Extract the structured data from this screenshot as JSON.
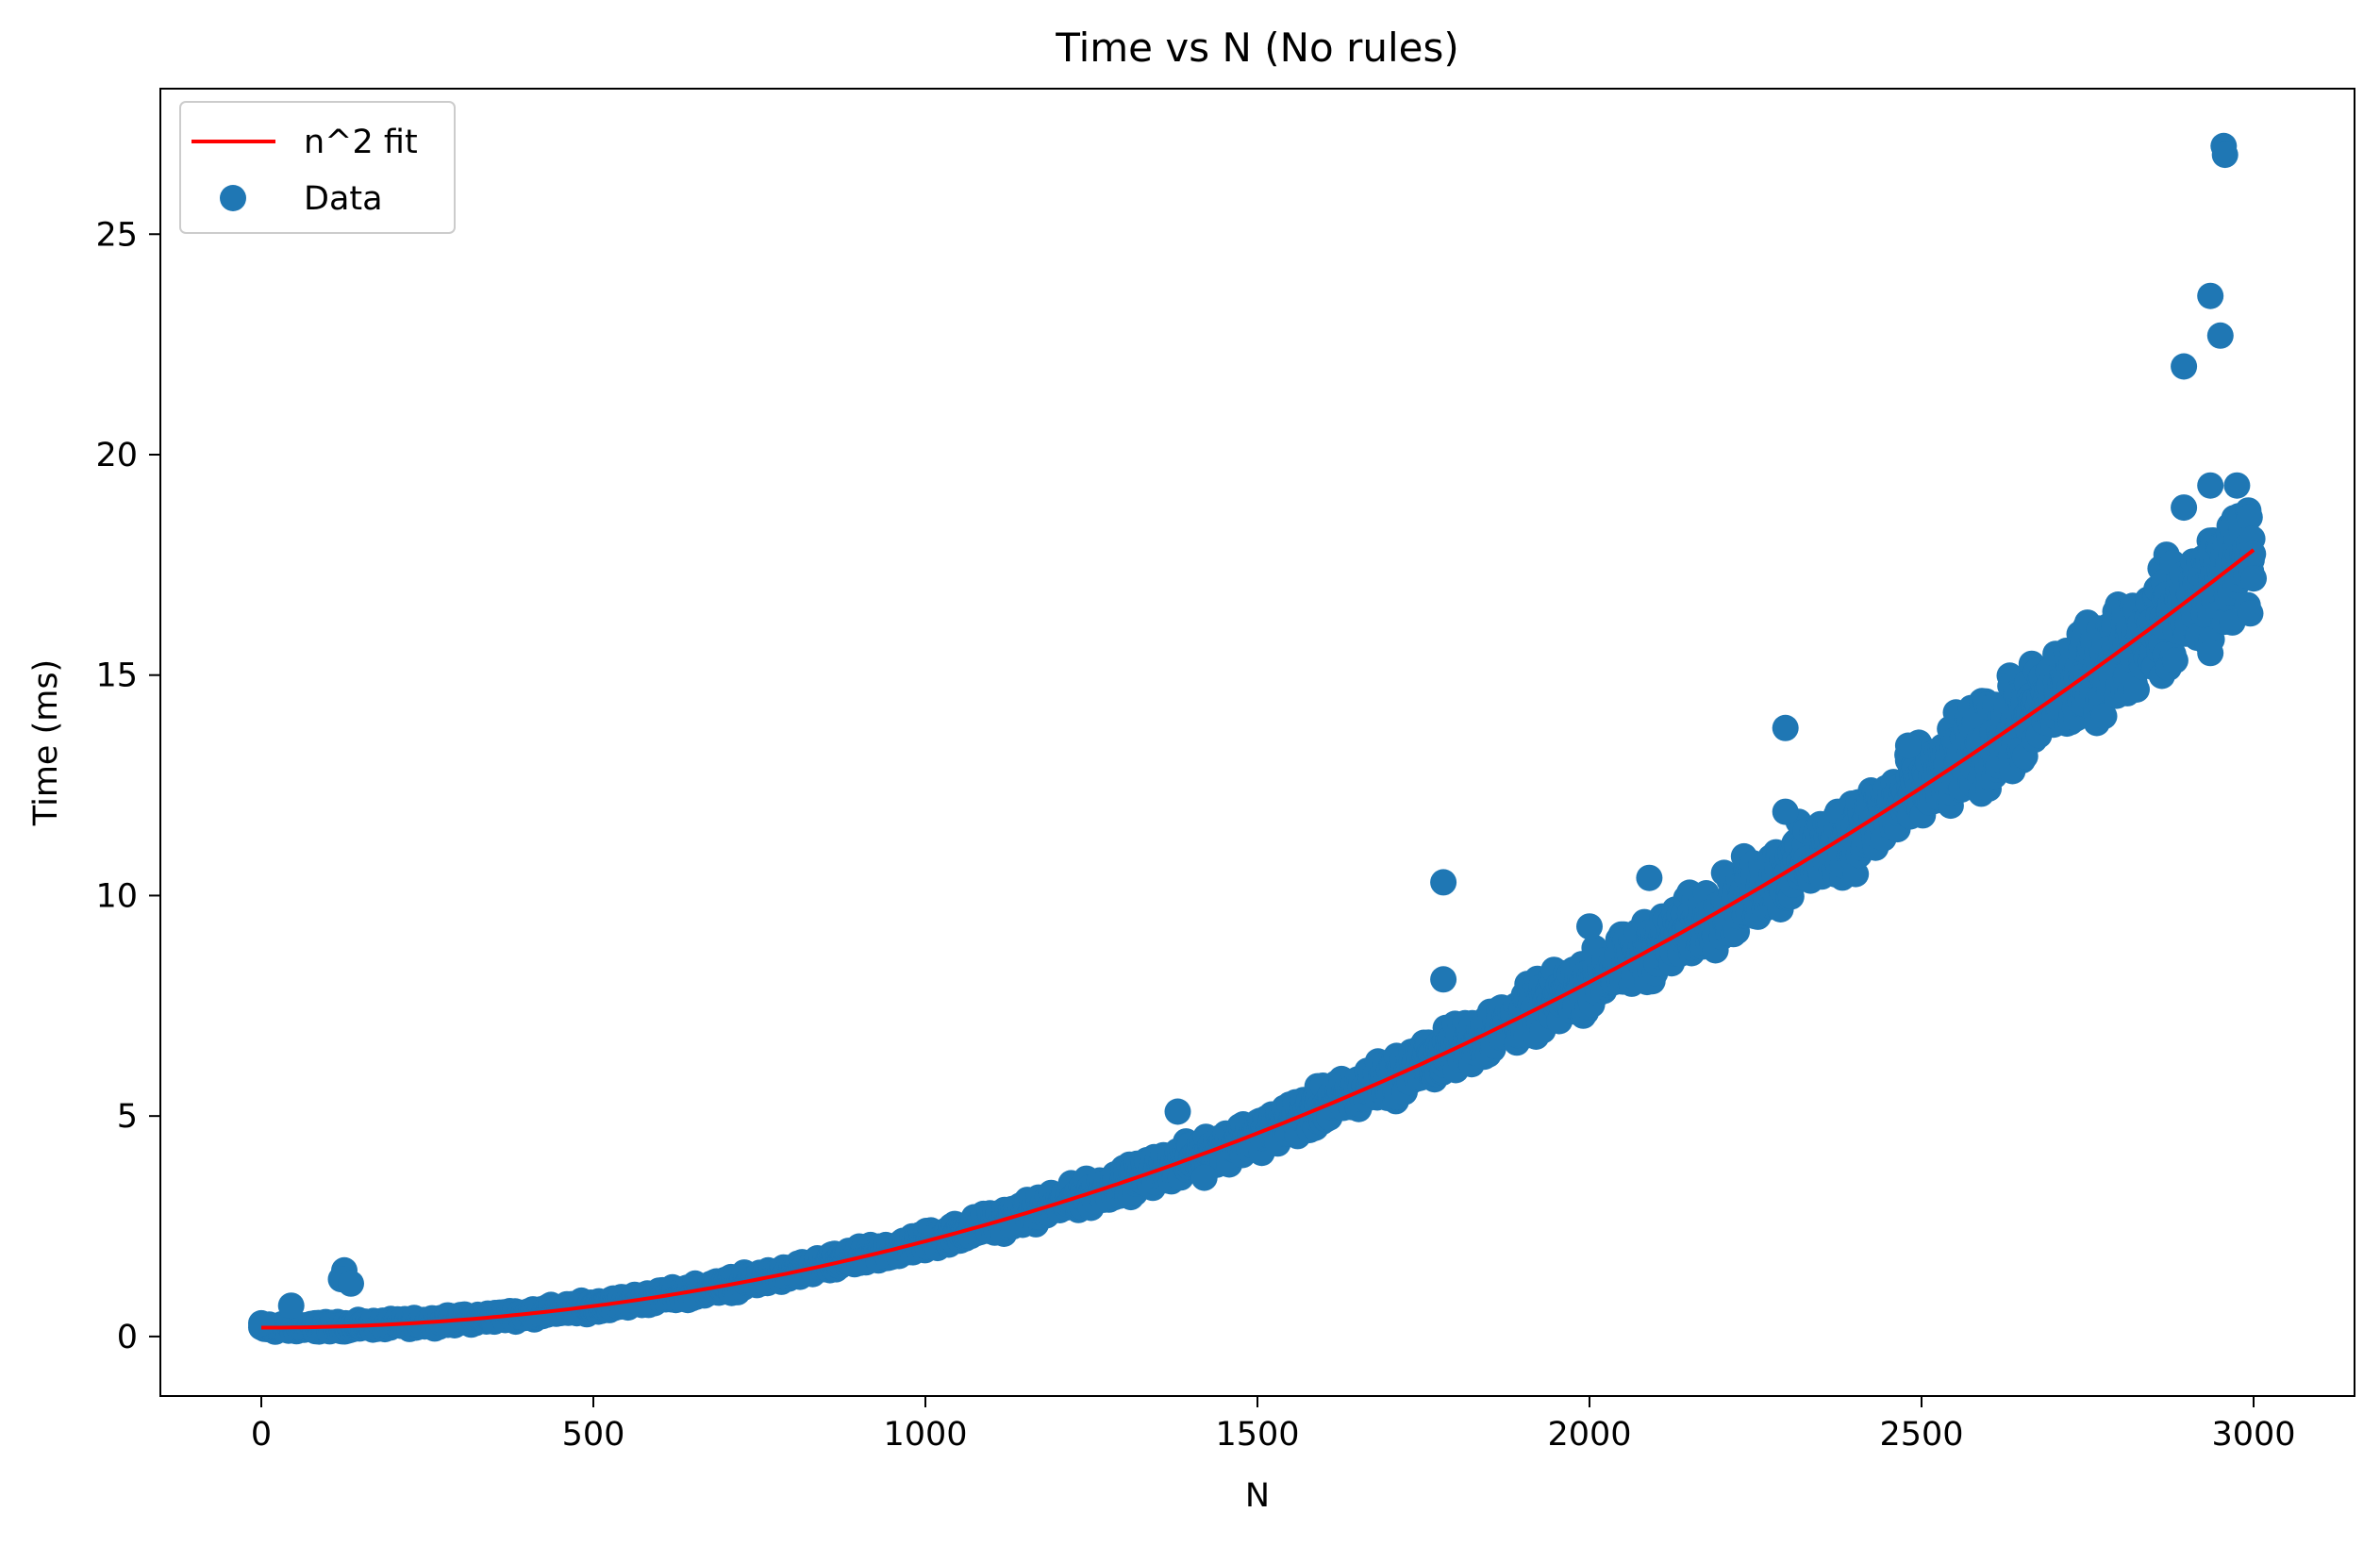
{
  "chart_data": {
    "type": "scatter",
    "title": "Time vs N (No rules)",
    "xlabel": "N",
    "ylabel": "Time (ms)",
    "xlim": [
      -152,
      3152
    ],
    "ylim": [
      -1.35,
      28.3
    ],
    "xticks": [
      0,
      500,
      1000,
      1500,
      2000,
      2500,
      3000
    ],
    "yticks": [
      0,
      5,
      10,
      15,
      20,
      25
    ],
    "grid": false,
    "legend_position": "top-left",
    "series": [
      {
        "name": "n^2 fit",
        "kind": "line",
        "color": "#ff0000",
        "model": "quadratic",
        "coefficients": {
          "a": 1.96e-06,
          "b": 0.0,
          "c": 0.2
        },
        "x_range": [
          0,
          3000
        ]
      },
      {
        "name": "Data",
        "kind": "scatter",
        "color": "#1f77b4",
        "x_range": [
          0,
          3000
        ],
        "point_count": 3000,
        "spread_fraction": 0.06,
        "outliers": [
          {
            "x": 0,
            "y": 0.3
          },
          {
            "x": 45,
            "y": 0.7
          },
          {
            "x": 125,
            "y": 1.5
          },
          {
            "x": 120,
            "y": 1.3
          },
          {
            "x": 135,
            "y": 1.2
          },
          {
            "x": 1380,
            "y": 5.1
          },
          {
            "x": 1420,
            "y": 3.6
          },
          {
            "x": 1780,
            "y": 10.3
          },
          {
            "x": 1780,
            "y": 8.1
          },
          {
            "x": 2000,
            "y": 9.3
          },
          {
            "x": 2090,
            "y": 10.4
          },
          {
            "x": 2295,
            "y": 13.8
          },
          {
            "x": 2295,
            "y": 11.9
          },
          {
            "x": 2480,
            "y": 13.4
          },
          {
            "x": 2895,
            "y": 22.0
          },
          {
            "x": 2935,
            "y": 23.6
          },
          {
            "x": 2950,
            "y": 22.7
          },
          {
            "x": 2955,
            "y": 27.0
          },
          {
            "x": 2957,
            "y": 26.8
          },
          {
            "x": 2895,
            "y": 18.8
          },
          {
            "x": 2935,
            "y": 19.3
          },
          {
            "x": 2975,
            "y": 19.3
          },
          {
            "x": 2935,
            "y": 15.5
          },
          {
            "x": 2995,
            "y": 16.4
          }
        ]
      }
    ]
  }
}
